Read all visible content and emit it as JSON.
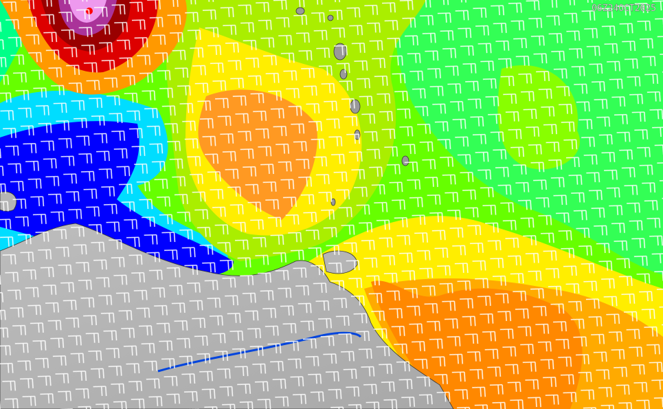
{
  "timestamp": "06Z24OCT2025"
}
